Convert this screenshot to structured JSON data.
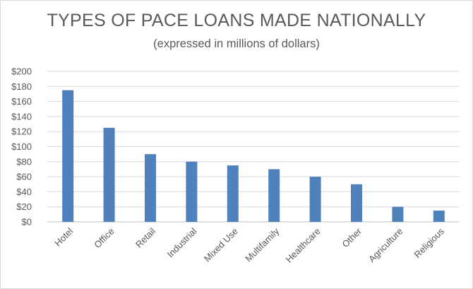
{
  "chart_data": {
    "type": "bar",
    "title": "TYPES OF PACE LOANS MADE NATIONALLY",
    "subtitle": "(expressed in millions of dollars)",
    "xlabel": "",
    "ylabel": "",
    "categories": [
      "Hotel",
      "Office",
      "Retail",
      "Industrial",
      "Mixed Use",
      "Multifamily",
      "Healthcare",
      "Other",
      "Agriculture",
      "Religious"
    ],
    "values": [
      175,
      125,
      90,
      80,
      75,
      70,
      60,
      50,
      20,
      15
    ],
    "ylim": [
      0,
      200
    ],
    "yticks": [
      0,
      20,
      40,
      60,
      80,
      100,
      120,
      140,
      160,
      180,
      200
    ],
    "ytick_labels": [
      "$0",
      "$20",
      "$40",
      "$60",
      "$80",
      "$100",
      "$120",
      "$140",
      "$160",
      "$180",
      "$200"
    ],
    "grid": true,
    "legend": "none",
    "bar_color": "#4f81bd"
  }
}
